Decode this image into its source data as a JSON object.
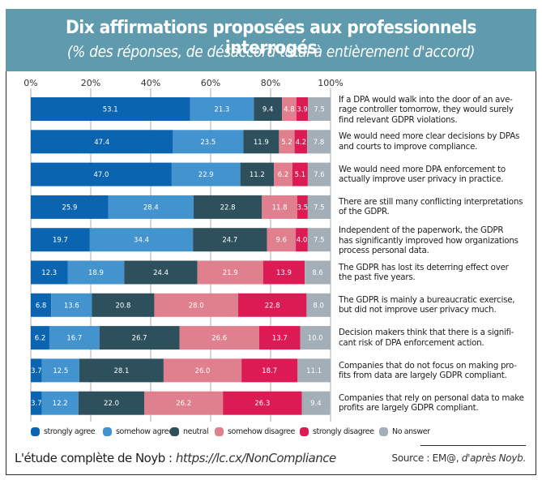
{
  "header": {
    "title": "Dix affirmations proposées aux professionnels interrogés",
    "subtitle": "(% des réponses, de désaccord total à entièrement d'accord)"
  },
  "chart_data": {
    "type": "bar",
    "orientation": "horizontal",
    "stacked": true,
    "title": "Dix affirmations proposées aux professionnels interrogés",
    "subtitle": "(% des réponses, de désaccord total à entièrement d'accord)",
    "xlabel": "",
    "ylabel": "",
    "xlim": [
      0,
      100
    ],
    "x_ticks": [
      "0%",
      "20%",
      "40%",
      "60%",
      "80%",
      "100%"
    ],
    "grid": true,
    "legend_position": "bottom",
    "categories": [
      "If a DPA would walk into the door of an average controller tomorrow, they would surely find relevant GDPR violations.",
      "We would need more clear decisions by DPAs and courts to improve compliance.",
      "We would need more DPA enforcement to actually improve user privacy in practice.",
      "There are still many conflicting interpretations of the GDPR.",
      "Independent of the paperwork, the GDPR has significantly improved how organizations process personal data.",
      "The GDPR has lost its deterring effect over the past five years.",
      "The GDPR is mainly a bureaucratic exercise, but did not improve user privacy much.",
      "Decision makers think that there is a significant risk of DPA enforcement action.",
      "Companies that do not focus on making profits from data are largely GDPR compliant.",
      "Companies that rely on personal data to make profits are largely GDPR compliant."
    ],
    "category_lines": [
      [
        "If a DPA would walk into the door of an ave-",
        "rage controller tomorrow, they would surely",
        "find relevant GDPR violations."
      ],
      [
        "We would need more clear decisions by DPAs",
        "and courts to improve compliance."
      ],
      [
        "We would need more DPA enforcement to",
        "actually improve user privacy in practice."
      ],
      [
        "There are still many conflicting interpretations",
        "of the GDPR."
      ],
      [
        "Independent of the paperwork, the GDPR",
        "has significantly improved how organizations",
        "process personal data."
      ],
      [
        "The GDPR has lost its deterring effect over",
        "the past five years."
      ],
      [
        "The GDPR is mainly a bureaucratic exercise,",
        "but did not improve user privacy much."
      ],
      [
        "Decision makers think that there is a signifi-",
        "cant risk of DPA enforcement action."
      ],
      [
        "Companies that do not focus on making pro-",
        "fits from data are largely GDPR compliant."
      ],
      [
        "Companies that rely on personal data to make",
        "profits are largely GDPR compliant."
      ]
    ],
    "series": [
      {
        "name": "strongly agree",
        "color": "#0a64b0",
        "values": [
          53.1,
          47.4,
          47.0,
          25.9,
          19.7,
          12.3,
          6.8,
          6.2,
          3.7,
          3.7
        ]
      },
      {
        "name": "somehow agree",
        "color": "#4393cf",
        "values": [
          21.3,
          23.5,
          22.9,
          28.4,
          34.4,
          18.9,
          13.6,
          16.7,
          12.5,
          12.2
        ]
      },
      {
        "name": "neutral",
        "color": "#2e4f5c",
        "values": [
          9.4,
          11.9,
          11.2,
          22.8,
          24.7,
          24.4,
          20.8,
          26.7,
          28.1,
          22.0
        ]
      },
      {
        "name": "somehow disagree",
        "color": "#e07f8e",
        "values": [
          4.8,
          5.2,
          6.2,
          11.8,
          9.6,
          21.9,
          28.0,
          26.6,
          26.0,
          26.2
        ]
      },
      {
        "name": "strongly disagree",
        "color": "#dc1b55",
        "values": [
          3.9,
          4.2,
          5.1,
          3.5,
          4.0,
          13.9,
          22.8,
          13.7,
          18.7,
          26.3
        ]
      },
      {
        "name": "No answer",
        "color": "#a3aeb7",
        "values": [
          7.5,
          7.8,
          7.6,
          7.5,
          7.5,
          8.6,
          8.0,
          10.0,
          11.1,
          9.4
        ]
      }
    ],
    "value_labels": [
      [
        "53.1",
        "21.3",
        "9.4",
        "4.8",
        "3.9",
        "7.5"
      ],
      [
        "47.4",
        "23.5",
        "11.9",
        "5.2",
        "4.2",
        "7.8"
      ],
      [
        "47.0",
        "22.9",
        "11.2",
        "6.2",
        "5.1",
        "7.6"
      ],
      [
        "25.9",
        "28.4",
        "22.8",
        "11.8",
        "3.5",
        "7.5"
      ],
      [
        "19.7",
        "34.4",
        "24.7",
        "9.6",
        "4.0",
        "7.5"
      ],
      [
        "12.3",
        "18.9",
        "24.4",
        "21.9",
        "13.9",
        "8.6"
      ],
      [
        "6.8",
        "13.6",
        "20.8",
        "28.0",
        "22.8",
        "8.0"
      ],
      [
        "6.2",
        "16.7",
        "26.7",
        "26.6",
        "13.7",
        "10.0"
      ],
      [
        "3.7",
        "12.5",
        "28.1",
        "26.0",
        "18.7",
        "11.1"
      ],
      [
        "3.7",
        "12.2",
        "22.0",
        "26.2",
        "26.3",
        "9.4"
      ]
    ]
  },
  "legend": [
    {
      "label": "strongly agree",
      "color": "#0a64b0"
    },
    {
      "label": "somehow agree",
      "color": "#4393cf"
    },
    {
      "label": "neutral",
      "color": "#2e4f5c"
    },
    {
      "label": "somehow disagree",
      "color": "#e07f8e"
    },
    {
      "label": "strongly disagree",
      "color": "#dc1b55"
    },
    {
      "label": "No answer",
      "color": "#a3aeb7"
    }
  ],
  "footer": {
    "study_label": "L'étude complète de Noyb : ",
    "study_url": "https://lc.cx/NonCompliance",
    "source_prefix": "Source : EM@, ",
    "source_suffix": "d'après  Noyb."
  },
  "colors": {
    "header_bg": "#5f9aad",
    "grid": "#a3aeb7"
  }
}
